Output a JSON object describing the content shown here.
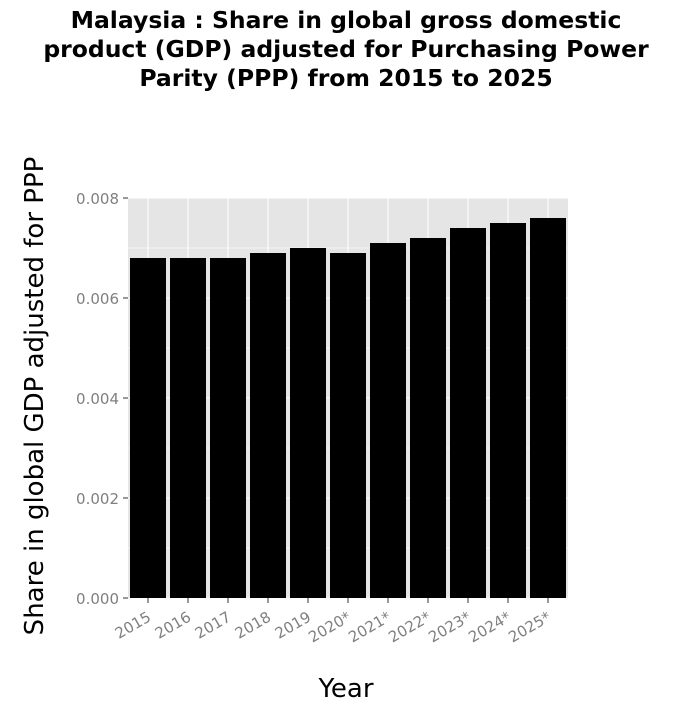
{
  "chart_data": {
    "type": "bar",
    "title_lines": [
      "Malaysia : Share in global gross domestic",
      "product (GDP) adjusted for Purchasing Power",
      "Parity (PPP) from 2015 to 2025"
    ],
    "xlabel": "Year",
    "ylabel": "Share in global GDP adjusted for PPP",
    "categories": [
      "2015",
      "2016",
      "2017",
      "2018",
      "2019",
      "2020*",
      "2021*",
      "2022*",
      "2023*",
      "2024*",
      "2025*"
    ],
    "values": [
      0.0068,
      0.0068,
      0.0068,
      0.0069,
      0.007,
      0.0069,
      0.0071,
      0.0072,
      0.0074,
      0.0075,
      0.0076
    ],
    "ylim": [
      0,
      0.008
    ],
    "yticks": [
      "0.000",
      "0.002",
      "0.004",
      "0.006",
      "0.008"
    ],
    "grid": true,
    "colors": {
      "bar": "#000000",
      "panel": "#e5e5e5",
      "grid": "#ffffff",
      "tick_text": "#7f7f7f"
    }
  }
}
